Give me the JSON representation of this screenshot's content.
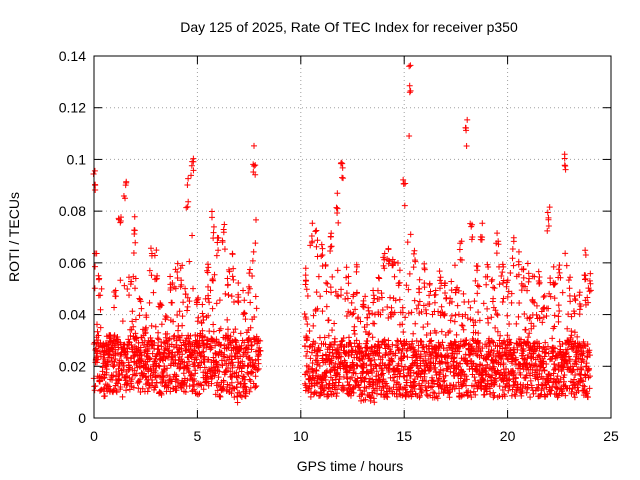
{
  "chart_data": {
    "type": "scatter",
    "title": "Day 125 of 2025, Rate Of TEC Index for receiver p350",
    "xlabel": "GPS time / hours",
    "ylabel": "ROTI / TECUs",
    "xlim": [
      0,
      25
    ],
    "ylim": [
      0,
      0.14
    ],
    "x_ticks": [
      0,
      5,
      10,
      15,
      20,
      25
    ],
    "x_tick_labels": [
      "0",
      "5",
      "10",
      "15",
      "20",
      "25"
    ],
    "y_ticks": [
      0,
      0.02,
      0.04,
      0.06,
      0.08,
      0.1,
      0.12,
      0.14
    ],
    "y_tick_labels": [
      "0",
      "0.02",
      "0.04",
      "0.06",
      "0.08",
      "0.1",
      "0.12",
      "0.14"
    ],
    "grid": true,
    "marker": "plus",
    "color": "#ff0000",
    "segments": [
      {
        "x_start": 0.0,
        "x_end": 8.0
      },
      {
        "x_start": 10.2,
        "x_end": 24.0
      }
    ],
    "envelope": [
      [
        0.0,
        0.01,
        0.1
      ],
      [
        0.25,
        0.01,
        0.056
      ],
      [
        0.5,
        0.008,
        0.03
      ],
      [
        0.75,
        0.01,
        0.032
      ],
      [
        1.0,
        0.01,
        0.05
      ],
      [
        1.25,
        0.009,
        0.085
      ],
      [
        1.5,
        0.008,
        0.092
      ],
      [
        1.75,
        0.01,
        0.058
      ],
      [
        2.0,
        0.01,
        0.078
      ],
      [
        2.25,
        0.01,
        0.048
      ],
      [
        2.5,
        0.01,
        0.04
      ],
      [
        2.75,
        0.01,
        0.066
      ],
      [
        3.0,
        0.01,
        0.065
      ],
      [
        3.25,
        0.008,
        0.045
      ],
      [
        3.5,
        0.01,
        0.04
      ],
      [
        3.75,
        0.01,
        0.055
      ],
      [
        4.0,
        0.01,
        0.06
      ],
      [
        4.25,
        0.01,
        0.062
      ],
      [
        4.5,
        0.01,
        0.093
      ],
      [
        4.75,
        0.01,
        0.102
      ],
      [
        5.0,
        0.008,
        0.048
      ],
      [
        5.25,
        0.01,
        0.044
      ],
      [
        5.5,
        0.01,
        0.06
      ],
      [
        5.75,
        0.01,
        0.08
      ],
      [
        6.0,
        0.008,
        0.074
      ],
      [
        6.25,
        0.01,
        0.075
      ],
      [
        6.5,
        0.01,
        0.062
      ],
      [
        6.75,
        0.008,
        0.065
      ],
      [
        7.0,
        0.006,
        0.055
      ],
      [
        7.25,
        0.008,
        0.05
      ],
      [
        7.5,
        0.01,
        0.06
      ],
      [
        7.75,
        0.01,
        0.106
      ],
      [
        8.0,
        0.012,
        0.03
      ],
      [
        10.25,
        0.01,
        0.06
      ],
      [
        10.5,
        0.008,
        0.078
      ],
      [
        10.75,
        0.008,
        0.073
      ],
      [
        11.0,
        0.008,
        0.07
      ],
      [
        11.25,
        0.008,
        0.06
      ],
      [
        11.5,
        0.008,
        0.075
      ],
      [
        11.75,
        0.008,
        0.087
      ],
      [
        12.0,
        0.01,
        0.1
      ],
      [
        12.25,
        0.008,
        0.06
      ],
      [
        12.5,
        0.008,
        0.05
      ],
      [
        12.75,
        0.008,
        0.06
      ],
      [
        13.0,
        0.006,
        0.05
      ],
      [
        13.25,
        0.008,
        0.045
      ],
      [
        13.5,
        0.006,
        0.05
      ],
      [
        13.75,
        0.008,
        0.055
      ],
      [
        14.0,
        0.008,
        0.066
      ],
      [
        14.25,
        0.008,
        0.068
      ],
      [
        14.5,
        0.008,
        0.065
      ],
      [
        14.75,
        0.008,
        0.06
      ],
      [
        15.0,
        0.008,
        0.094
      ],
      [
        15.25,
        0.008,
        0.137
      ],
      [
        15.5,
        0.008,
        0.07
      ],
      [
        15.75,
        0.008,
        0.055
      ],
      [
        16.0,
        0.008,
        0.06
      ],
      [
        16.25,
        0.008,
        0.055
      ],
      [
        16.5,
        0.006,
        0.05
      ],
      [
        16.75,
        0.008,
        0.06
      ],
      [
        17.0,
        0.008,
        0.055
      ],
      [
        17.25,
        0.008,
        0.055
      ],
      [
        17.5,
        0.008,
        0.06
      ],
      [
        17.75,
        0.008,
        0.07
      ],
      [
        18.0,
        0.008,
        0.117
      ],
      [
        18.25,
        0.008,
        0.08
      ],
      [
        18.5,
        0.008,
        0.06
      ],
      [
        18.75,
        0.008,
        0.08
      ],
      [
        19.0,
        0.008,
        0.06
      ],
      [
        19.25,
        0.008,
        0.055
      ],
      [
        19.5,
        0.008,
        0.074
      ],
      [
        19.75,
        0.008,
        0.06
      ],
      [
        20.0,
        0.008,
        0.055
      ],
      [
        20.25,
        0.008,
        0.07
      ],
      [
        20.5,
        0.008,
        0.065
      ],
      [
        20.75,
        0.008,
        0.058
      ],
      [
        21.0,
        0.008,
        0.06
      ],
      [
        21.25,
        0.008,
        0.055
      ],
      [
        21.5,
        0.008,
        0.06
      ],
      [
        21.75,
        0.008,
        0.05
      ],
      [
        22.0,
        0.008,
        0.082
      ],
      [
        22.25,
        0.008,
        0.062
      ],
      [
        22.5,
        0.008,
        0.06
      ],
      [
        22.75,
        0.008,
        0.107
      ],
      [
        23.0,
        0.008,
        0.055
      ],
      [
        23.25,
        0.008,
        0.05
      ],
      [
        23.5,
        0.008,
        0.05
      ],
      [
        23.75,
        0.008,
        0.065
      ],
      [
        24.0,
        0.008,
        0.06
      ]
    ]
  }
}
